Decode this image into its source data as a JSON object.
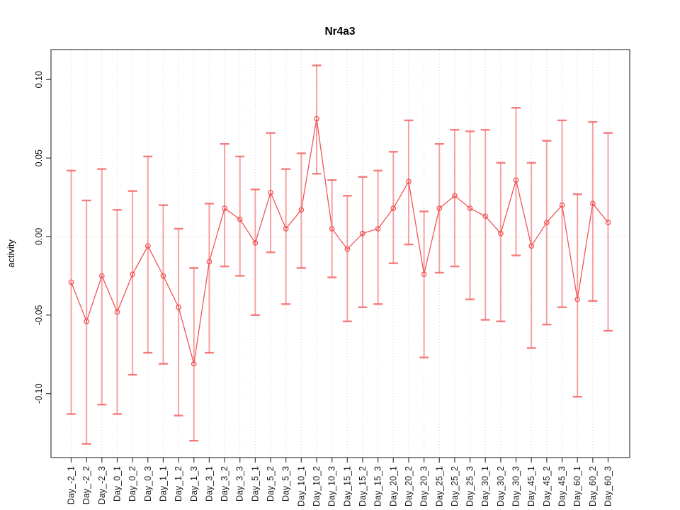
{
  "page": {
    "background": "#ffffff"
  },
  "chart": {
    "title": "Nr4a3",
    "y_label": "activity"
  },
  "chart_data": {
    "type": "line",
    "title": "Nr4a3",
    "xlabel": "",
    "ylabel": "activity",
    "ylim": [
      -0.131,
      0.109
    ],
    "yticks": [
      0.1,
      0.05,
      0.0,
      -0.05,
      -0.1
    ],
    "ytick_labels": [
      "0.10",
      "0.05",
      "0.00",
      "-0.05",
      "-0.10"
    ],
    "grid": {
      "vertical_dotted_per_category": true,
      "horizontal_dotted_at_zero": true
    },
    "legend_position": "none",
    "marker": "open-circle",
    "error_bars": true,
    "categories": [
      "Day_-2_1",
      "Day_-2_2",
      "Day_-2_3",
      "Day_0_1",
      "Day_0_2",
      "Day_0_3",
      "Day_1_1",
      "Day_1_2",
      "Day_1_3",
      "Day_3_1",
      "Day_3_2",
      "Day_3_3",
      "Day_5_1",
      "Day_5_2",
      "Day_5_3",
      "Day_10_1",
      "Day_10_2",
      "Day_10_3",
      "Day_15_1",
      "Day_15_2",
      "Day_15_3",
      "Day_20_1",
      "Day_20_2",
      "Day_20_3",
      "Day_25_1",
      "Day_25_2",
      "Day_25_3",
      "Day_30_1",
      "Day_30_2",
      "Day_30_3",
      "Day_45_1",
      "Day_45_2",
      "Day_45_3",
      "Day_60_1",
      "Day_60_2",
      "Day_60_3"
    ],
    "series": [
      {
        "name": "activity",
        "values": [
          -0.029,
          -0.054,
          -0.025,
          -0.048,
          -0.024,
          -0.006,
          -0.025,
          -0.045,
          -0.081,
          -0.016,
          0.018,
          0.011,
          -0.004,
          0.028,
          0.005,
          0.017,
          0.075,
          0.005,
          -0.008,
          0.002,
          0.005,
          0.018,
          0.035,
          -0.024,
          0.018,
          0.026,
          0.018,
          0.013,
          0.002,
          0.036,
          -0.006,
          0.009,
          0.02,
          -0.04,
          0.021,
          0.009
        ],
        "error_low": [
          -0.113,
          -0.132,
          -0.107,
          -0.113,
          -0.088,
          -0.074,
          -0.081,
          -0.114,
          -0.13,
          -0.074,
          -0.019,
          -0.025,
          -0.05,
          -0.01,
          -0.043,
          -0.02,
          0.04,
          -0.026,
          -0.054,
          -0.045,
          -0.043,
          -0.017,
          -0.005,
          -0.077,
          -0.023,
          -0.019,
          -0.04,
          -0.053,
          -0.054,
          -0.012,
          -0.071,
          -0.056,
          -0.045,
          -0.102,
          -0.041,
          -0.06
        ],
        "error_high": [
          0.042,
          0.023,
          0.043,
          0.017,
          0.029,
          0.051,
          0.02,
          0.005,
          -0.02,
          0.021,
          0.059,
          0.051,
          0.03,
          0.066,
          0.043,
          0.053,
          0.109,
          0.036,
          0.026,
          0.038,
          0.042,
          0.054,
          0.074,
          0.016,
          0.059,
          0.068,
          0.067,
          0.068,
          0.047,
          0.082,
          0.047,
          0.061,
          0.074,
          0.027,
          0.073,
          0.066
        ]
      }
    ]
  },
  "colors": {
    "series": "#f15555",
    "error_bar": "rgba(242,90,90,0.55)",
    "error_cap": "rgba(242,90,90,0.78)",
    "grid": "#d6d6d6",
    "zero_line": "#c9c9c9",
    "axis": "#3d3d3d",
    "text": "#111111"
  }
}
